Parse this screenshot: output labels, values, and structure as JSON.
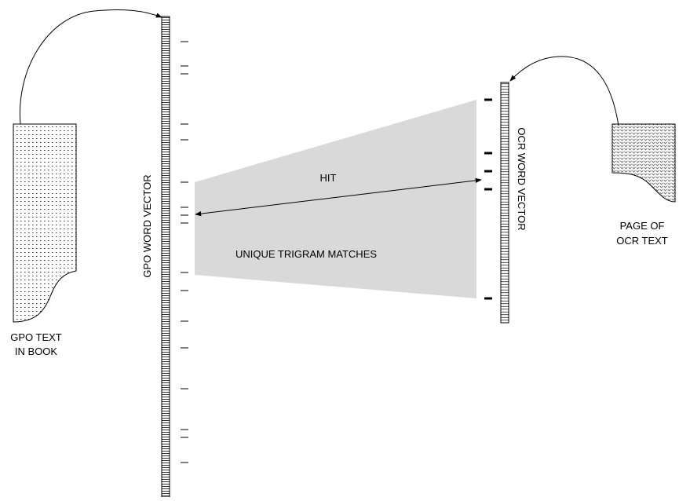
{
  "labels": {
    "gpo_doc_line1": "GPO TEXT",
    "gpo_doc_line2": "IN BOOK",
    "gpo_vector": "GPO WORD VECTOR",
    "ocr_vector": "OCR WORD VECTOR",
    "ocr_doc_line1": "PAGE OF",
    "ocr_doc_line2": "OCR TEXT",
    "hit": "HIT",
    "trigram_matches": "UNIQUE TRIGRAM MATCHES"
  },
  "colors": {
    "ink": "#000000",
    "match_region": "#d9d9d9",
    "paper": "#ffffff"
  }
}
